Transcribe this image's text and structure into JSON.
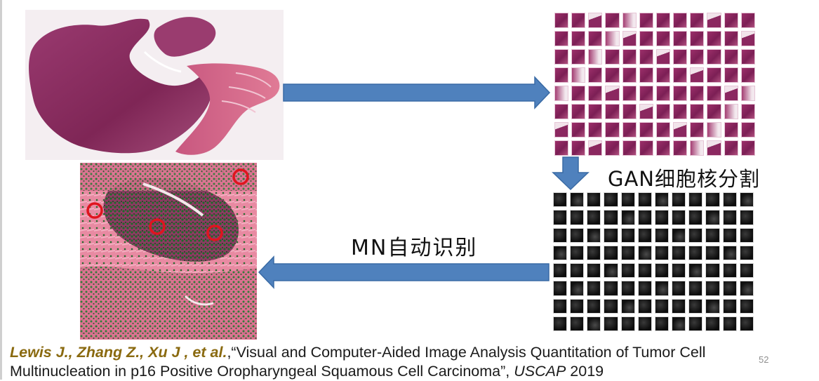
{
  "labels": {
    "gan_segmentation": "GAN细胞核分割",
    "mn_recognition": "MN自动识别"
  },
  "citation": {
    "authors": "Lewis J., Zhang Z., Xu J , et al.",
    "title": "“Visual and Computer-Aided Image Analysis Quantitation of Tumor Cell Multinucleation in p16 Positive Oropharyngeal Squamous Cell Carcinoma”",
    "venue": "USCAP",
    "year": "2019"
  },
  "page_number": "52",
  "colors": {
    "arrow_fill": "#4f81bd",
    "arrow_stroke": "#3a6ba5",
    "tissue_dark": "#8e2f63",
    "tissue_light": "#d86e8e",
    "detection_circle": "#e0141e",
    "nuclei_overlay": "#1f7a2e"
  },
  "icons": [
    "whole-slide-image",
    "tissue-tile-grid",
    "segmented-nuclei-grid",
    "annotated-tissue-image"
  ]
}
